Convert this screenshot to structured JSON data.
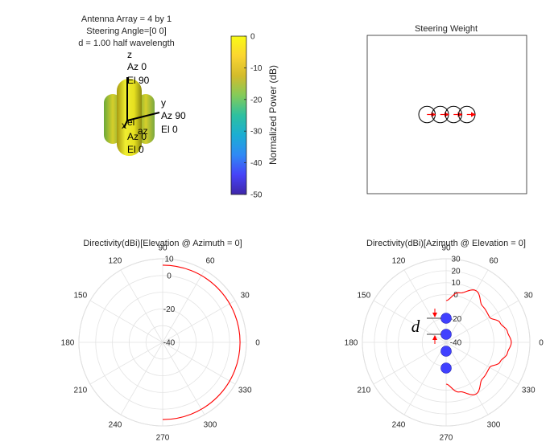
{
  "chart_data": [
    {
      "type": "3d-pattern",
      "title_lines": [
        "Antenna Array = 4 by 1",
        "Steering Angle=[0 0]",
        "d = 1.00 half wavelength"
      ],
      "axes_labels": [
        {
          "axis": "z",
          "lines": [
            "z",
            "Az 0",
            "El 90"
          ]
        },
        {
          "axis": "y",
          "lines": [
            "y",
            "Az 90",
            "El 0"
          ]
        },
        {
          "axis": "x",
          "lines": [
            "x",
            "Az 0",
            "El 0"
          ]
        },
        {
          "axis": "overlap",
          "lines": [
            "el",
            "az"
          ]
        }
      ],
      "colorbar": {
        "label": "Normalized Power (dB)",
        "ticks": [
          0,
          -10,
          -20,
          -30,
          -40,
          -50
        ],
        "range": [
          -50,
          0
        ],
        "colormap": [
          "#3e26a8",
          "#4743f8",
          "#2f8af5",
          "#1baed3",
          "#2dc0a0",
          "#83cb5a",
          "#d3bb2c",
          "#fbd531",
          "#f9fb15"
        ]
      }
    },
    {
      "type": "scatter",
      "title": "Steering Weight",
      "element_x": [
        -1.5,
        -0.5,
        0.5,
        1.5
      ],
      "element_y": [
        0,
        0,
        0,
        0
      ],
      "weights": [
        1,
        1,
        1,
        1
      ],
      "xlim": [
        -6,
        6
      ],
      "ylim": [
        -6,
        6
      ],
      "circle_color": "#000000",
      "arrow_color": "#ff0000"
    },
    {
      "type": "polar",
      "title": "Directivity(dBi)[Elevation @ Azimuth = 0]",
      "angle_ticks": [
        0,
        30,
        60,
        90,
        120,
        150,
        180,
        210,
        240,
        270,
        300,
        330
      ],
      "radial_ticks": [
        10,
        0,
        -20,
        -40
      ],
      "rlim": [
        -40,
        10
      ],
      "series": [
        {
          "angle": [
            -90,
            -60,
            -30,
            0,
            30,
            60,
            90
          ],
          "value": [
            6.2,
            6.2,
            6.2,
            6.2,
            6.2,
            6.2,
            6.2
          ],
          "color": "#ff0000"
        }
      ]
    },
    {
      "type": "polar",
      "title": "Directivity(dBi)[Azimuth @ Elevation = 0]",
      "angle_ticks": [
        0,
        30,
        60,
        90,
        120,
        150,
        180,
        210,
        240,
        270,
        300,
        330
      ],
      "radial_ticks": [
        30,
        20,
        10,
        0,
        -20,
        -40
      ],
      "rlim": [
        -40,
        30
      ],
      "series": [
        {
          "angle": [
            -90,
            -75,
            -60,
            -45,
            -30,
            -20,
            -10,
            0,
            10,
            20,
            30,
            45,
            60,
            75,
            90
          ],
          "value": [
            -5,
            3,
            10,
            3,
            2,
            8,
            12,
            14.5,
            12,
            8,
            2,
            3,
            10,
            3,
            -5
          ],
          "color": "#ff0000"
        }
      ],
      "array_elements": 4,
      "element_color": "#4040ff",
      "annotation": "d"
    }
  ]
}
